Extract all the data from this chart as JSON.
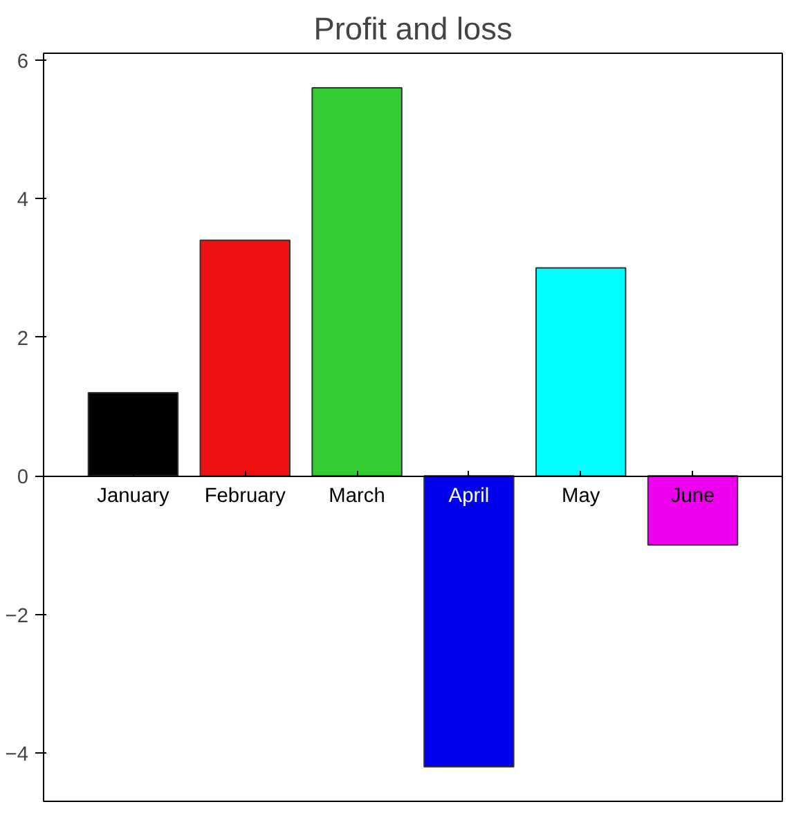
{
  "chart_data": {
    "type": "bar",
    "title": "Profit and loss",
    "categories": [
      "January",
      "February",
      "March",
      "April",
      "May",
      "June"
    ],
    "values": [
      1.2,
      3.4,
      5.6,
      -4.2,
      3.0,
      -1.0
    ],
    "colors": [
      "#000000",
      "#ee1111",
      "#33cc33",
      "#0000ee",
      "#00ffff",
      "#ee00ee"
    ],
    "ylim": [
      -4.7,
      6.1
    ],
    "yticks": [
      -4,
      -2,
      0,
      2,
      4,
      6
    ],
    "grid": false
  }
}
